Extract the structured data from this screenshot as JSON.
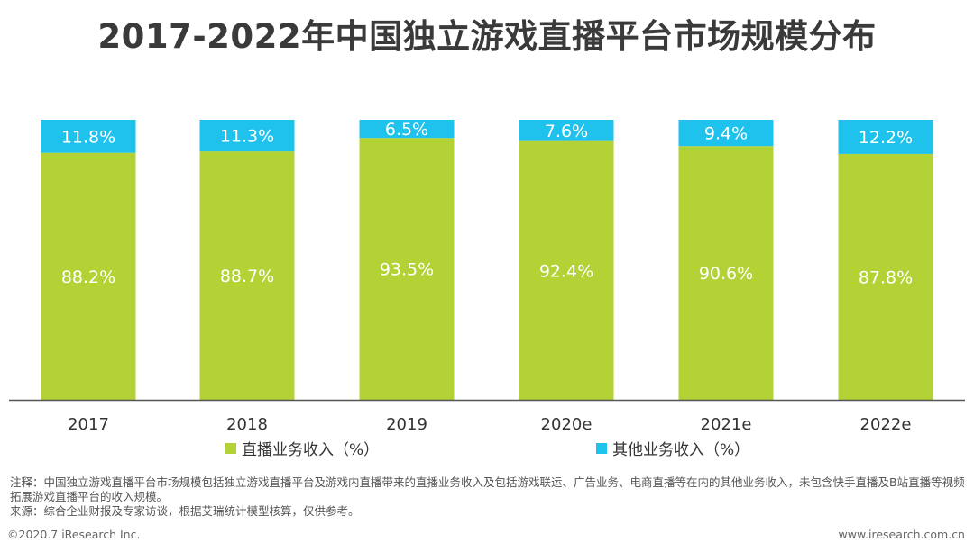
{
  "title": "2017-2022年中国独立游戏直播平台市场规模分布",
  "colors": {
    "live": "#b2d235",
    "other": "#1fc2ec",
    "axis": "#555555"
  },
  "chart_data": {
    "type": "bar",
    "stacked": true,
    "categories": [
      "2017",
      "2018",
      "2019",
      "2020e",
      "2021e",
      "2022e"
    ],
    "series": [
      {
        "name": "直播业务收入（%）",
        "values": [
          88.2,
          88.7,
          93.5,
          92.4,
          90.6,
          87.8
        ],
        "labels": [
          "88.2%",
          "88.7%",
          "93.5%",
          "92.4%",
          "90.6%",
          "87.8%"
        ]
      },
      {
        "name": "其他业务收入（%）",
        "values": [
          11.8,
          11.3,
          6.5,
          7.6,
          9.4,
          12.2
        ],
        "labels": [
          "11.8%",
          "11.3%",
          "6.5%",
          "7.6%",
          "9.4%",
          "12.2%"
        ]
      }
    ],
    "ylim": [
      0,
      100
    ],
    "legend_position": "bottom"
  },
  "notes": {
    "note": "注释：中国独立游戏直播平台市场规模包括独立游戏直播平台及游戏内直播带来的直播业务收入及包括游戏联运、广告业务、电商直播等在内的其他业务收入，未包含快手直播及B站直播等视频拓展游戏直播平台的收入规模。",
    "source": "来源：综合企业财报及专家访谈，根据艾瑞统计模型核算，仅供参考。"
  },
  "footer": {
    "copyright": "©2020.7 iResearch Inc.",
    "website": "www.iresearch.com.cn"
  }
}
